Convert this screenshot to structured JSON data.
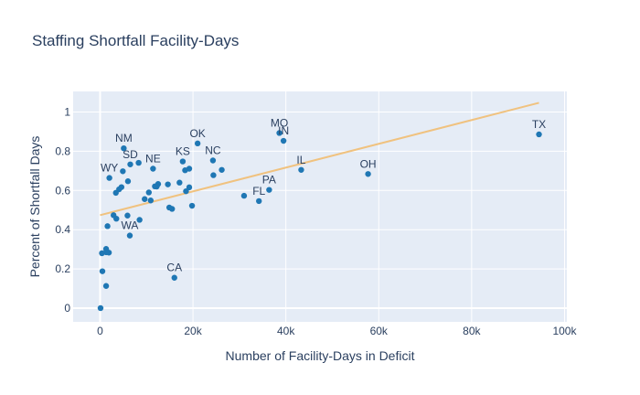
{
  "chart_data": {
    "type": "scatter",
    "title": "Staffing Shortfall Facility-Days",
    "xlabel": "Number of Facility-Days in Deficit",
    "ylabel": "Percent of Shortfall Days",
    "xlim": [
      -5800,
      100500
    ],
    "ylim": [
      -0.07,
      1.105
    ],
    "x_ticks": [
      0,
      20000,
      40000,
      60000,
      80000,
      100000
    ],
    "x_tick_labels": [
      "0",
      "20k",
      "40k",
      "60k",
      "80k",
      "100k"
    ],
    "y_ticks": [
      0,
      0.2,
      0.4,
      0.6,
      0.8,
      1
    ],
    "y_tick_labels": [
      "0",
      "0.2",
      "0.4",
      "0.6",
      "0.8",
      "1"
    ],
    "grid": true,
    "colors": {
      "plot_background": "#e5ecf6",
      "grid": "#ffffff",
      "marker": "#1f77b4",
      "trendline": "#f0c27f",
      "text": "#2a3f5f"
    },
    "points": [
      {
        "x": 94500,
        "y": 0.886,
        "label": "TX"
      },
      {
        "x": 57700,
        "y": 0.684,
        "label": "OH"
      },
      {
        "x": 43300,
        "y": 0.705,
        "label": "IL"
      },
      {
        "x": 39500,
        "y": 0.853,
        "label": "IN"
      },
      {
        "x": 38600,
        "y": 0.893,
        "label": "MO"
      },
      {
        "x": 36400,
        "y": 0.603,
        "label": "PA"
      },
      {
        "x": 34200,
        "y": 0.546,
        "label": "FL"
      },
      {
        "x": 31000,
        "y": 0.573,
        "label": ""
      },
      {
        "x": 26200,
        "y": 0.705,
        "label": ""
      },
      {
        "x": 24300,
        "y": 0.753,
        "label": "NC"
      },
      {
        "x": 24400,
        "y": 0.678,
        "label": ""
      },
      {
        "x": 21000,
        "y": 0.84,
        "label": "OK"
      },
      {
        "x": 19800,
        "y": 0.522,
        "label": ""
      },
      {
        "x": 19200,
        "y": 0.711,
        "label": ""
      },
      {
        "x": 19200,
        "y": 0.616,
        "label": ""
      },
      {
        "x": 18300,
        "y": 0.703,
        "label": ""
      },
      {
        "x": 18500,
        "y": 0.596,
        "label": ""
      },
      {
        "x": 17800,
        "y": 0.748,
        "label": "KS"
      },
      {
        "x": 17100,
        "y": 0.64,
        "label": ""
      },
      {
        "x": 16000,
        "y": 0.155,
        "label": "CA"
      },
      {
        "x": 15500,
        "y": 0.506,
        "label": ""
      },
      {
        "x": 14900,
        "y": 0.513,
        "label": ""
      },
      {
        "x": 14600,
        "y": 0.631,
        "label": ""
      },
      {
        "x": 12500,
        "y": 0.633,
        "label": ""
      },
      {
        "x": 12200,
        "y": 0.62,
        "label": ""
      },
      {
        "x": 11800,
        "y": 0.621,
        "label": ""
      },
      {
        "x": 11400,
        "y": 0.711,
        "label": "NE"
      },
      {
        "x": 10900,
        "y": 0.549,
        "label": ""
      },
      {
        "x": 10500,
        "y": 0.59,
        "label": ""
      },
      {
        "x": 9600,
        "y": 0.556,
        "label": ""
      },
      {
        "x": 8500,
        "y": 0.45,
        "label": ""
      },
      {
        "x": 8300,
        "y": 0.741,
        "label": ""
      },
      {
        "x": 6500,
        "y": 0.733,
        "label": "SD"
      },
      {
        "x": 6400,
        "y": 0.37,
        "label": "WA"
      },
      {
        "x": 6000,
        "y": 0.647,
        "label": ""
      },
      {
        "x": 5900,
        "y": 0.472,
        "label": ""
      },
      {
        "x": 5100,
        "y": 0.815,
        "label": "NM"
      },
      {
        "x": 4900,
        "y": 0.698,
        "label": ""
      },
      {
        "x": 4600,
        "y": 0.617,
        "label": ""
      },
      {
        "x": 4100,
        "y": 0.606,
        "label": ""
      },
      {
        "x": 3400,
        "y": 0.588,
        "label": ""
      },
      {
        "x": 3500,
        "y": 0.456,
        "label": ""
      },
      {
        "x": 2900,
        "y": 0.474,
        "label": ""
      },
      {
        "x": 2000,
        "y": 0.664,
        "label": "WY"
      },
      {
        "x": 1600,
        "y": 0.418,
        "label": ""
      },
      {
        "x": 1900,
        "y": 0.283,
        "label": ""
      },
      {
        "x": 1300,
        "y": 0.302,
        "label": ""
      },
      {
        "x": 1300,
        "y": 0.285,
        "label": ""
      },
      {
        "x": 1300,
        "y": 0.113,
        "label": ""
      },
      {
        "x": 400,
        "y": 0.28,
        "label": ""
      },
      {
        "x": 500,
        "y": 0.188,
        "label": ""
      },
      {
        "x": 100,
        "y": 0.0,
        "label": ""
      }
    ],
    "trendline": {
      "x": [
        0,
        94500
      ],
      "y": [
        0.474,
        1.047
      ]
    }
  }
}
